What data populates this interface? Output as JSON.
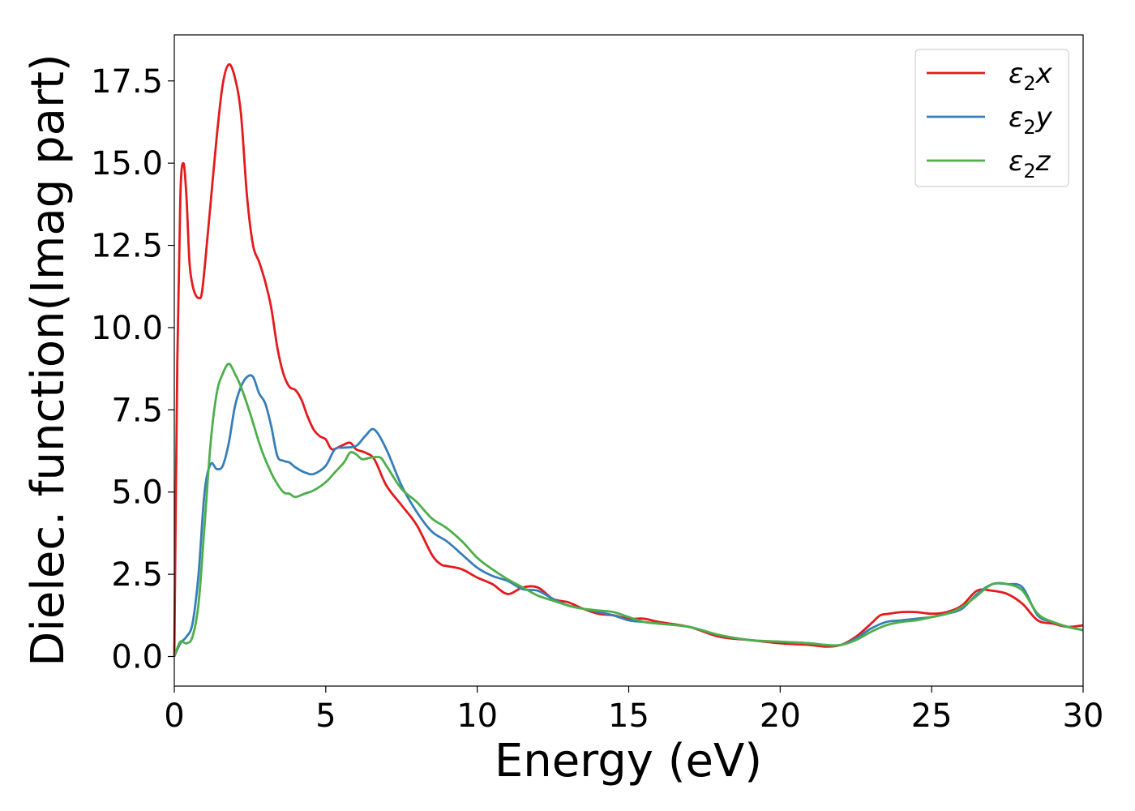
{
  "chart_data": {
    "type": "line",
    "xlabel": "Energy (eV)",
    "ylabel": "Dielec. function(Imag part)",
    "xlim": [
      0,
      30
    ],
    "ylim": [
      -0.9,
      18.9
    ],
    "xticks": [
      0,
      5,
      10,
      15,
      20,
      25,
      30
    ],
    "xtick_labels": [
      "0",
      "5",
      "10",
      "15",
      "20",
      "25",
      "30"
    ],
    "yticks": [
      0,
      2.5,
      5,
      7.5,
      10,
      12.5,
      15,
      17.5
    ],
    "ytick_labels": [
      "0.0",
      "2.5",
      "5.0",
      "7.5",
      "10.0",
      "12.5",
      "15.0",
      "17.5"
    ],
    "grid": false,
    "legend_position": "top-right",
    "series": [
      {
        "name": "ε₂x",
        "legend": {
          "base": "ε",
          "sub": "2",
          "suffix": "x"
        },
        "color": "#e41a1c",
        "x": [
          0,
          0.1,
          0.2,
          0.3,
          0.4,
          0.5,
          0.6,
          0.7,
          0.8,
          0.9,
          1.0,
          1.2,
          1.4,
          1.6,
          1.8,
          2.0,
          2.2,
          2.4,
          2.6,
          2.8,
          3.0,
          3.2,
          3.4,
          3.6,
          3.8,
          4.0,
          4.2,
          4.4,
          4.6,
          4.8,
          5.0,
          5.2,
          5.5,
          5.8,
          6.0,
          6.3,
          6.6,
          7.0,
          7.5,
          8.0,
          8.5,
          8.8,
          9.0,
          9.5,
          10.0,
          10.5,
          11.0,
          11.5,
          12.0,
          12.5,
          13.0,
          13.5,
          14.0,
          14.5,
          15.0,
          15.5,
          16.0,
          17.0,
          18.0,
          19.0,
          20.0,
          21.0,
          21.5,
          22.0,
          22.5,
          23.0,
          23.3,
          23.6,
          24.0,
          24.5,
          25.0,
          25.5,
          26.0,
          26.5,
          27.0,
          27.5,
          28.0,
          28.5,
          29.0,
          29.5,
          30.0
        ],
        "y": [
          0,
          9.0,
          14.0,
          15.0,
          14.0,
          12.0,
          11.3,
          11.0,
          10.9,
          11.0,
          11.8,
          13.8,
          15.8,
          17.4,
          18.0,
          17.6,
          16.5,
          14.0,
          12.5,
          12.0,
          11.4,
          10.6,
          9.4,
          8.6,
          8.2,
          8.1,
          7.8,
          7.3,
          6.9,
          6.7,
          6.6,
          6.3,
          6.4,
          6.5,
          6.3,
          6.2,
          6.0,
          5.2,
          4.6,
          4.0,
          3.1,
          2.8,
          2.75,
          2.65,
          2.4,
          2.2,
          1.9,
          2.1,
          2.1,
          1.75,
          1.65,
          1.45,
          1.3,
          1.25,
          1.15,
          1.15,
          1.05,
          0.9,
          0.6,
          0.5,
          0.4,
          0.35,
          0.3,
          0.35,
          0.6,
          1.0,
          1.25,
          1.3,
          1.35,
          1.35,
          1.3,
          1.35,
          1.55,
          2.0,
          2.0,
          1.9,
          1.6,
          1.1,
          1.0,
          0.9,
          0.95
        ]
      },
      {
        "name": "ε₂y",
        "legend": {
          "base": "ε",
          "sub": "2",
          "suffix": "y"
        },
        "color": "#377eb8",
        "x": [
          0,
          0.2,
          0.4,
          0.6,
          0.8,
          1.0,
          1.2,
          1.4,
          1.6,
          1.8,
          2.0,
          2.2,
          2.4,
          2.6,
          2.8,
          3.0,
          3.2,
          3.4,
          3.6,
          3.8,
          4.0,
          4.3,
          4.6,
          5.0,
          5.3,
          5.6,
          6.0,
          6.3,
          6.6,
          7.0,
          7.5,
          8.0,
          8.5,
          9.0,
          9.5,
          10.0,
          10.5,
          11.0,
          11.5,
          12.0,
          12.5,
          13.0,
          13.5,
          14.0,
          14.5,
          15.0,
          15.5,
          16.0,
          17.0,
          18.0,
          19.0,
          20.0,
          21.0,
          21.5,
          22.0,
          22.5,
          23.0,
          23.5,
          24.0,
          24.5,
          25.0,
          25.5,
          26.0,
          26.5,
          27.0,
          27.5,
          28.0,
          28.5,
          29.0,
          29.5,
          30.0
        ],
        "y": [
          0,
          0.4,
          0.6,
          1.0,
          2.5,
          5.0,
          5.85,
          5.7,
          5.8,
          6.5,
          7.6,
          8.2,
          8.5,
          8.5,
          8.0,
          7.7,
          7.0,
          6.1,
          5.95,
          5.9,
          5.75,
          5.6,
          5.55,
          5.8,
          6.3,
          6.35,
          6.4,
          6.7,
          6.9,
          6.3,
          5.2,
          4.4,
          3.8,
          3.5,
          3.1,
          2.7,
          2.45,
          2.3,
          2.05,
          2.0,
          1.75,
          1.55,
          1.45,
          1.35,
          1.25,
          1.1,
          1.05,
          1.0,
          0.9,
          0.65,
          0.5,
          0.45,
          0.4,
          0.35,
          0.35,
          0.55,
          0.85,
          1.05,
          1.1,
          1.15,
          1.2,
          1.3,
          1.45,
          1.9,
          2.2,
          2.2,
          2.1,
          1.25,
          1.05,
          0.9,
          0.8
        ]
      },
      {
        "name": "ε₂z",
        "legend": {
          "base": "ε",
          "sub": "2",
          "suffix": "z"
        },
        "color": "#4daf4a",
        "x": [
          0,
          0.2,
          0.4,
          0.6,
          0.8,
          1.0,
          1.2,
          1.4,
          1.6,
          1.8,
          2.0,
          2.2,
          2.5,
          2.8,
          3.0,
          3.3,
          3.6,
          3.8,
          4.0,
          4.3,
          4.6,
          5.0,
          5.3,
          5.6,
          5.8,
          6.0,
          6.2,
          6.5,
          6.8,
          7.0,
          7.5,
          8.0,
          8.5,
          9.0,
          9.5,
          10.0,
          10.5,
          11.0,
          11.5,
          12.0,
          12.5,
          13.0,
          13.5,
          14.0,
          14.5,
          15.0,
          15.5,
          16.0,
          17.0,
          18.0,
          19.0,
          20.0,
          21.0,
          21.5,
          22.0,
          22.5,
          23.0,
          23.5,
          24.0,
          24.5,
          25.0,
          25.5,
          26.0,
          26.5,
          27.0,
          27.5,
          28.0,
          28.5,
          29.0,
          29.5,
          30.0
        ],
        "y": [
          0,
          0.45,
          0.4,
          0.6,
          1.6,
          4.0,
          6.5,
          8.0,
          8.6,
          8.9,
          8.6,
          8.2,
          7.4,
          6.5,
          6.0,
          5.4,
          5.0,
          4.95,
          4.85,
          4.95,
          5.05,
          5.3,
          5.6,
          5.9,
          6.2,
          6.15,
          6.0,
          6.05,
          6.05,
          5.8,
          5.1,
          4.7,
          4.2,
          3.9,
          3.5,
          3.0,
          2.65,
          2.35,
          2.1,
          1.85,
          1.7,
          1.55,
          1.45,
          1.4,
          1.35,
          1.2,
          1.05,
          1.0,
          0.9,
          0.65,
          0.5,
          0.45,
          0.4,
          0.35,
          0.35,
          0.5,
          0.75,
          0.95,
          1.05,
          1.1,
          1.2,
          1.3,
          1.5,
          1.85,
          2.2,
          2.2,
          2.0,
          1.3,
          1.05,
          0.9,
          0.8
        ]
      }
    ]
  }
}
